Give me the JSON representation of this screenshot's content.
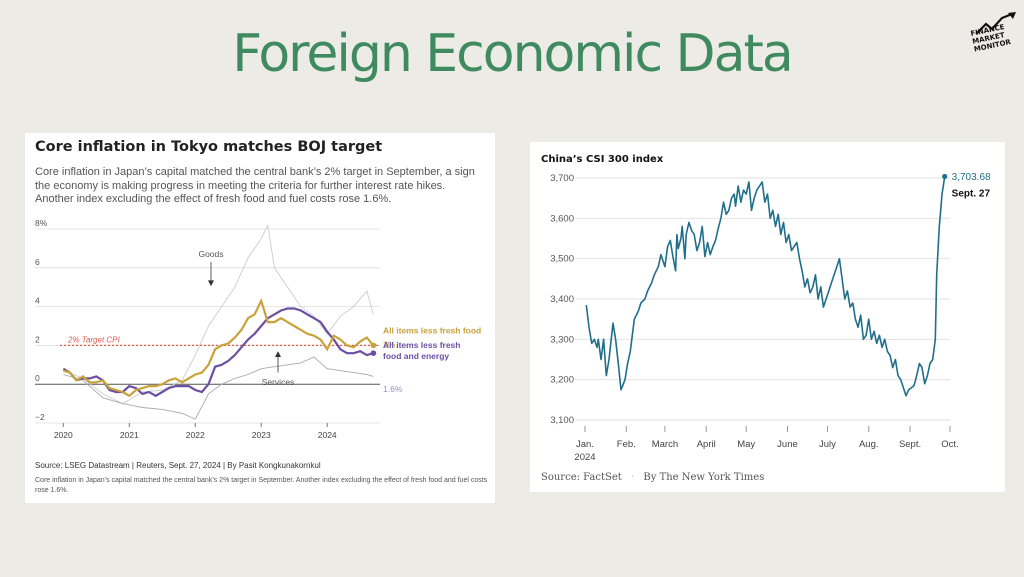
{
  "page": {
    "title": "Foreign Economic Data",
    "logo_text": [
      "FINANCE",
      "MARKET",
      "MONITOR"
    ]
  },
  "colors": {
    "title": "#3f8a5e",
    "core": "#c9a23a",
    "coreCore": "#6b4fa3",
    "target": "#e05a4e",
    "goods": "#cccccc",
    "services": "#aaaaaa",
    "csi": "#1f6f8b"
  },
  "chart_data": [
    {
      "type": "line",
      "title": "Core inflation in Tokyo matches BOJ target",
      "subtitle": "Core inflation in Japan’s capital matched the central bank’s 2% target in September, a sign the economy is making progress in meeting the criteria for further interest rate hikes. Another index excluding the effect of fresh food and fuel costs rose 1.6%.",
      "ylim": [
        -2,
        8
      ],
      "y_ticks": [
        "8%",
        "6",
        "4",
        "2",
        "0",
        "−2"
      ],
      "y_tick_values": [
        8,
        6,
        4,
        2,
        0,
        -2
      ],
      "x_ticks": [
        "2020",
        "2021",
        "2022",
        "2023",
        "2024"
      ],
      "x_tick_values": [
        2020,
        2021,
        2022,
        2023,
        2024
      ],
      "xlim": [
        2019.95,
        2024.8
      ],
      "target": {
        "value": 2,
        "label": "2% Target CPI"
      },
      "annotations": {
        "goods": "Goods",
        "services": "Services"
      },
      "series": [
        {
          "name": "All items less fresh food",
          "end_label": "2%",
          "x": [
            2020.0,
            2020.1,
            2020.2,
            2020.3,
            2020.4,
            2020.5,
            2020.6,
            2020.7,
            2020.8,
            2020.9,
            2021.0,
            2021.1,
            2021.2,
            2021.3,
            2021.4,
            2021.5,
            2021.6,
            2021.7,
            2021.8,
            2021.9,
            2022.0,
            2022.1,
            2022.2,
            2022.3,
            2022.4,
            2022.5,
            2022.6,
            2022.7,
            2022.8,
            2022.9,
            2023.0,
            2023.1,
            2023.2,
            2023.3,
            2023.4,
            2023.5,
            2023.6,
            2023.7,
            2023.8,
            2023.9,
            2024.0,
            2024.1,
            2024.2,
            2024.3,
            2024.4,
            2024.5,
            2024.6,
            2024.7
          ],
          "values": [
            0.7,
            0.6,
            0.2,
            0.4,
            0.1,
            0.1,
            0.2,
            -0.2,
            -0.3,
            -0.4,
            -0.6,
            -0.3,
            -0.2,
            -0.1,
            -0.1,
            0.0,
            0.2,
            0.3,
            0.1,
            0.3,
            0.5,
            0.6,
            1.0,
            1.8,
            2.0,
            2.1,
            2.4,
            2.8,
            3.4,
            3.6,
            4.3,
            3.2,
            3.2,
            3.4,
            3.2,
            3.0,
            2.8,
            2.6,
            2.5,
            2.3,
            1.8,
            2.5,
            2.3,
            2.0,
            1.9,
            2.2,
            2.4,
            2.0
          ]
        },
        {
          "name": "All items less fresh food and energy",
          "end_label": "1.6%",
          "x": [
            2020.0,
            2020.1,
            2020.2,
            2020.3,
            2020.4,
            2020.5,
            2020.6,
            2020.7,
            2020.8,
            2020.9,
            2021.0,
            2021.1,
            2021.2,
            2021.3,
            2021.4,
            2021.5,
            2021.6,
            2021.7,
            2021.8,
            2021.9,
            2022.0,
            2022.1,
            2022.2,
            2022.3,
            2022.4,
            2022.5,
            2022.6,
            2022.7,
            2022.8,
            2022.9,
            2023.0,
            2023.1,
            2023.2,
            2023.3,
            2023.4,
            2023.5,
            2023.6,
            2023.7,
            2023.8,
            2023.9,
            2024.0,
            2024.1,
            2024.2,
            2024.3,
            2024.4,
            2024.5,
            2024.6,
            2024.7
          ],
          "values": [
            0.8,
            0.6,
            0.2,
            0.3,
            0.3,
            0.4,
            0.2,
            -0.3,
            -0.4,
            -0.4,
            -0.1,
            -0.2,
            -0.5,
            -0.4,
            -0.6,
            -0.4,
            -0.2,
            -0.1,
            -0.1,
            -0.1,
            -0.3,
            -0.4,
            0.0,
            0.9,
            1.0,
            1.2,
            1.5,
            1.9,
            2.3,
            2.6,
            3.0,
            3.4,
            3.6,
            3.8,
            3.9,
            3.9,
            3.8,
            3.6,
            3.4,
            3.2,
            2.7,
            2.3,
            1.8,
            1.6,
            1.6,
            1.7,
            1.5,
            1.6
          ]
        },
        {
          "name": "Goods",
          "x": [
            2020.0,
            2020.3,
            2020.6,
            2020.9,
            2021.2,
            2021.5,
            2021.8,
            2022.0,
            2022.2,
            2022.4,
            2022.6,
            2022.8,
            2023.0,
            2023.1,
            2023.2,
            2023.4,
            2023.6,
            2023.8,
            2024.0,
            2024.2,
            2024.4,
            2024.6,
            2024.7
          ],
          "values": [
            0.7,
            0.3,
            -0.5,
            -1.0,
            -0.4,
            -0.3,
            0.2,
            1.5,
            3.0,
            4.0,
            5.0,
            6.5,
            7.5,
            8.2,
            6.0,
            5.0,
            4.0,
            3.5,
            2.6,
            3.5,
            4.0,
            4.8,
            3.6
          ]
        },
        {
          "name": "Services",
          "x": [
            2020.0,
            2020.3,
            2020.6,
            2020.9,
            2021.2,
            2021.5,
            2021.8,
            2022.0,
            2022.2,
            2022.4,
            2022.6,
            2022.8,
            2023.0,
            2023.2,
            2023.4,
            2023.6,
            2023.8,
            2024.0,
            2024.2,
            2024.4,
            2024.6,
            2024.7
          ],
          "values": [
            0.5,
            0.2,
            -0.7,
            -1.0,
            -1.2,
            -1.3,
            -1.5,
            -1.8,
            -0.5,
            0.0,
            0.3,
            0.5,
            0.8,
            0.9,
            1.0,
            1.1,
            1.4,
            0.8,
            0.7,
            0.6,
            0.5,
            0.4
          ]
        }
      ],
      "source": "Source: LSEG Datastream | Reuters, Sept. 27, 2024 | By Pasit Kongkunakornkul",
      "note": "Core inflation in Japan’s capital matched the central bank’s 2% target in September. Another index excluding the effect of fresh food and fuel costs rose 1.6%."
    },
    {
      "type": "line",
      "title": "China’s CSI 300 index",
      "ylim": [
        3100,
        3700
      ],
      "y_ticks": [
        "3,700",
        "3,600",
        "3,500",
        "3,400",
        "3,300",
        "3,200",
        "3,100"
      ],
      "y_tick_values": [
        3700,
        3600,
        3500,
        3400,
        3300,
        3200,
        3100
      ],
      "x_ticks": [
        "Jan.",
        "Feb.",
        "March",
        "April",
        "May",
        "June",
        "July",
        "Aug.",
        "Sept.",
        "Oct."
      ],
      "x_tick_year": "2024",
      "x_tick_values": [
        0,
        31,
        60,
        91,
        121,
        152,
        182,
        213,
        244,
        274
      ],
      "xlim": [
        0,
        274
      ],
      "last_value_label": "3,703.68",
      "last_date_label": "Sept. 27",
      "series": [
        {
          "name": "CSI 300",
          "x": [
            1,
            3,
            5,
            7,
            9,
            10,
            12,
            14,
            16,
            18,
            21,
            23,
            25,
            27,
            30,
            32,
            34,
            37,
            40,
            42,
            45,
            47,
            50,
            52,
            55,
            57,
            60,
            62,
            64,
            66,
            68,
            69,
            70,
            72,
            73,
            75,
            76,
            78,
            80,
            82,
            84,
            86,
            88,
            90,
            92,
            94,
            96,
            98,
            100,
            102,
            104,
            106,
            108,
            110,
            112,
            113,
            115,
            117,
            119,
            121,
            123,
            125,
            127,
            129,
            131,
            133,
            135,
            137,
            139,
            141,
            143,
            145,
            147,
            149,
            151,
            153,
            155,
            157,
            159,
            161,
            163,
            165,
            167,
            169,
            171,
            173,
            175,
            177,
            179,
            181,
            183,
            185,
            187,
            189,
            191,
            193,
            195,
            197,
            199,
            201,
            203,
            205,
            207,
            209,
            211,
            213,
            215,
            217,
            219,
            221,
            223,
            225,
            227,
            229,
            231,
            233,
            235,
            237,
            239,
            241,
            243,
            245,
            247,
            249,
            251,
            253,
            255,
            257,
            259,
            261,
            263,
            264,
            266,
            267,
            268,
            269,
            270
          ],
          "values": [
            3385,
            3330,
            3290,
            3300,
            3280,
            3300,
            3250,
            3300,
            3210,
            3250,
            3340,
            3300,
            3240,
            3175,
            3200,
            3240,
            3270,
            3350,
            3370,
            3390,
            3400,
            3420,
            3440,
            3460,
            3480,
            3510,
            3480,
            3530,
            3545,
            3505,
            3470,
            3560,
            3525,
            3550,
            3580,
            3500,
            3560,
            3590,
            3570,
            3560,
            3520,
            3540,
            3580,
            3505,
            3540,
            3510,
            3530,
            3545,
            3575,
            3600,
            3640,
            3610,
            3620,
            3650,
            3660,
            3630,
            3680,
            3640,
            3670,
            3660,
            3690,
            3620,
            3650,
            3670,
            3680,
            3690,
            3640,
            3660,
            3600,
            3620,
            3580,
            3610,
            3560,
            3590,
            3540,
            3560,
            3520,
            3530,
            3540,
            3500,
            3470,
            3430,
            3450,
            3415,
            3430,
            3460,
            3400,
            3430,
            3380,
            3400,
            3420,
            3440,
            3460,
            3480,
            3500,
            3450,
            3400,
            3420,
            3380,
            3390,
            3350,
            3330,
            3360,
            3300,
            3310,
            3350,
            3300,
            3320,
            3290,
            3310,
            3280,
            3300,
            3270,
            3260,
            3230,
            3250,
            3210,
            3200,
            3180,
            3160,
            3175,
            3180,
            3185,
            3210,
            3240,
            3230,
            3190,
            3210,
            3240,
            3250,
            3300,
            3460,
            3580,
            3620,
            3660,
            3680,
            3703.68
          ]
        }
      ],
      "source": "Source: FactSet",
      "source_sep": "·",
      "byline": "By The New York Times"
    }
  ]
}
